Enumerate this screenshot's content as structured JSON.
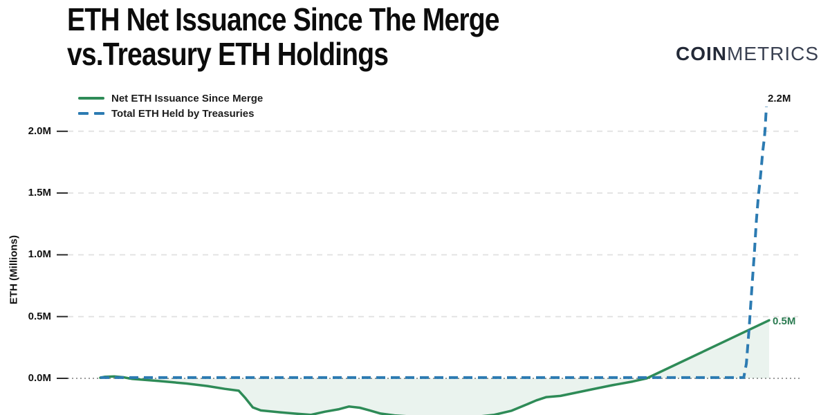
{
  "header": {
    "title_line1": "ETH Net Issuance Since The Merge",
    "title_line2": "vs.Treasury ETH Holdings"
  },
  "logo": {
    "bold": "COIN",
    "light": "METRICS"
  },
  "chart_data": {
    "type": "line",
    "title": "ETH Net Issuance Since The Merge vs.Treasury ETH Holdings",
    "ylabel": "ETH (Millions)",
    "x_unit": "percent of period shown (x-axis labels not visible in image)",
    "y_unit": "millions of ETH",
    "ylim": [
      -0.35,
      2.35
    ],
    "grid": "horizontal dashed gridlines, dotted zero line",
    "legend_position": "top-left",
    "yticks": [
      {
        "label": "0.0M",
        "value": 0
      },
      {
        "label": "0.5M",
        "value": 0.5
      },
      {
        "label": "1.0M",
        "value": 1.0
      },
      {
        "label": "1.5M",
        "value": 1.5
      },
      {
        "label": "2.0M",
        "value": 2.0
      }
    ],
    "colors": {
      "issuance_positive": "#2e8b57",
      "issuance_negative": "#ab2a24",
      "fill_positive": "rgba(46,139,87,0.10)",
      "fill_negative": "rgba(171,42,36,0.11)",
      "treasury": "#2c7bb2",
      "gridline": "#e3e3e3",
      "zero_line": "#9a9a9a"
    },
    "series": [
      {
        "name": "Net ETH Issuance Since Merge",
        "style": "solid",
        "end_label": "0.5M",
        "end_value": 0.47,
        "points": [
          [
            0,
            0.005
          ],
          [
            0.7,
            0.013
          ],
          [
            2.1,
            0.015
          ],
          [
            3.4,
            0.009
          ],
          [
            4.7,
            -0.004
          ],
          [
            8.8,
            -0.022
          ],
          [
            12.9,
            -0.042
          ],
          [
            16,
            -0.062
          ],
          [
            18.6,
            -0.085
          ],
          [
            20.7,
            -0.1
          ],
          [
            21.7,
            -0.16
          ],
          [
            22.8,
            -0.235
          ],
          [
            24,
            -0.26
          ],
          [
            26.9,
            -0.275
          ],
          [
            29,
            -0.285
          ],
          [
            31.5,
            -0.295
          ],
          [
            33.6,
            -0.27
          ],
          [
            35.7,
            -0.25
          ],
          [
            37.2,
            -0.228
          ],
          [
            38.8,
            -0.238
          ],
          [
            40.3,
            -0.26
          ],
          [
            41.9,
            -0.285
          ],
          [
            44,
            -0.3
          ],
          [
            48.1,
            -0.315
          ],
          [
            52.2,
            -0.32
          ],
          [
            56.4,
            -0.31
          ],
          [
            58.9,
            -0.295
          ],
          [
            61.5,
            -0.262
          ],
          [
            63.6,
            -0.215
          ],
          [
            65.2,
            -0.178
          ],
          [
            66.7,
            -0.152
          ],
          [
            68.8,
            -0.142
          ],
          [
            70.8,
            -0.12
          ],
          [
            73.4,
            -0.09
          ],
          [
            76.5,
            -0.056
          ],
          [
            79.6,
            -0.026
          ],
          [
            81.7,
            0
          ],
          [
            100,
            0.47
          ]
        ]
      },
      {
        "name": "Total ETH Held by Treasuries",
        "style": "dashed",
        "end_label": "2.2M",
        "end_value": 2.2,
        "points": [
          [
            0,
            0.006
          ],
          [
            96.2,
            0.006
          ],
          [
            96.6,
            0.12
          ],
          [
            97,
            0.4
          ],
          [
            97.4,
            0.72
          ],
          [
            97.8,
            1.02
          ],
          [
            98.1,
            1.28
          ],
          [
            98.4,
            1.48
          ],
          [
            98.65,
            1.6
          ],
          [
            98.85,
            1.72
          ],
          [
            99.05,
            1.84
          ],
          [
            99.3,
            1.95
          ],
          [
            99.4,
            2.02
          ],
          [
            99.5,
            2.12
          ],
          [
            99.6,
            2.2
          ]
        ]
      }
    ]
  }
}
